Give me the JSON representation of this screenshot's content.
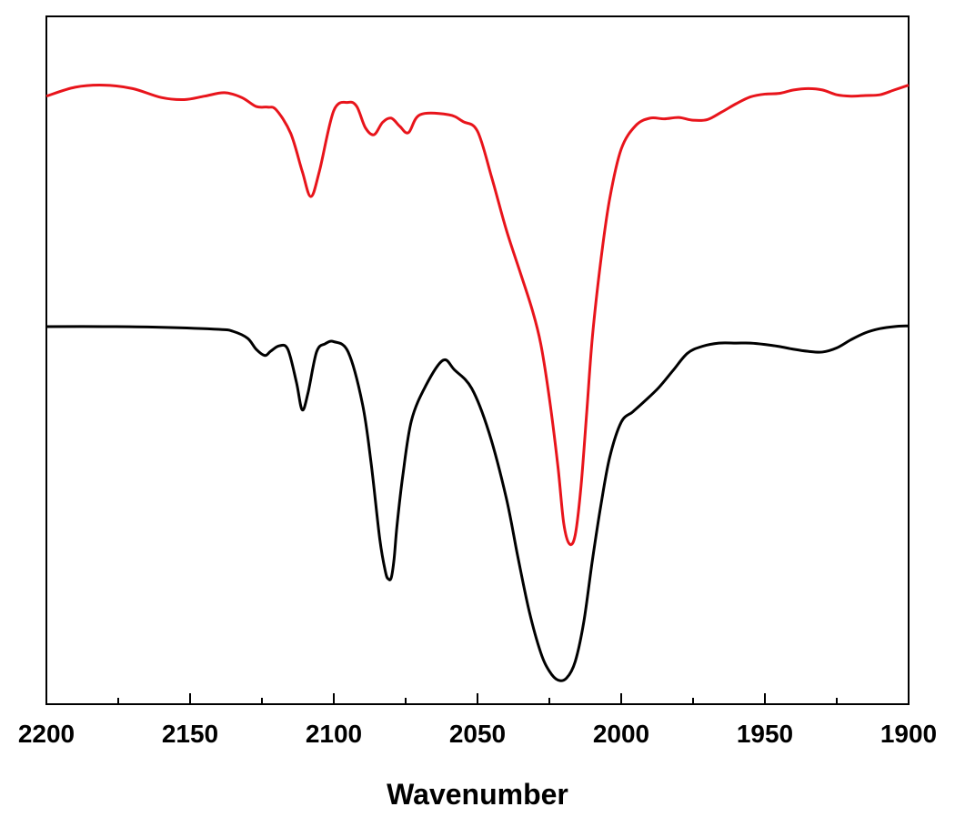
{
  "chart_data": {
    "type": "line",
    "title": "",
    "xlabel": "Wavenumber",
    "ylabel": "",
    "xlim": [
      2200,
      1900
    ],
    "x_reversed": true,
    "ylim": [
      0,
      1
    ],
    "grid": false,
    "y_ticks_labeled": false,
    "x_ticks": [
      2200,
      2150,
      2100,
      2050,
      2000,
      1950,
      1900
    ],
    "x_tick_labels": [
      "2200",
      "2150",
      "2100",
      "2050",
      "2000",
      "1950",
      "1900"
    ],
    "series": [
      {
        "color": "#e8141b",
        "x": [
          2200,
          2190,
          2180,
          2170,
          2160,
          2152,
          2145,
          2138,
          2132,
          2127,
          2123,
          2120,
          2115,
          2111,
          2108,
          2105,
          2100,
          2095,
          2092,
          2089,
          2086,
          2083,
          2080,
          2077,
          2074,
          2070,
          2060,
          2055,
          2050,
          2045,
          2040,
          2035,
          2031,
          2028,
          2025,
          2022,
          2020,
          2018,
          2016,
          2014,
          2012,
          2010,
          2007,
          2004,
          2000,
          1995,
          1990,
          1985,
          1980,
          1975,
          1970,
          1965,
          1960,
          1955,
          1950,
          1945,
          1940,
          1935,
          1930,
          1925,
          1920,
          1915,
          1910,
          1905,
          1900
        ],
        "y": [
          0.884,
          0.897,
          0.9,
          0.895,
          0.882,
          0.879,
          0.884,
          0.889,
          0.882,
          0.869,
          0.868,
          0.864,
          0.83,
          0.775,
          0.738,
          0.775,
          0.863,
          0.875,
          0.869,
          0.838,
          0.828,
          0.846,
          0.852,
          0.84,
          0.831,
          0.857,
          0.857,
          0.847,
          0.833,
          0.765,
          0.69,
          0.626,
          0.574,
          0.524,
          0.445,
          0.345,
          0.263,
          0.233,
          0.246,
          0.316,
          0.424,
          0.535,
          0.648,
          0.735,
          0.807,
          0.841,
          0.852,
          0.851,
          0.853,
          0.849,
          0.85,
          0.861,
          0.873,
          0.883,
          0.887,
          0.888,
          0.893,
          0.895,
          0.893,
          0.886,
          0.884,
          0.885,
          0.886,
          0.893,
          0.9
        ]
      },
      {
        "color": "#000000",
        "x": [
          2200,
          2180,
          2160,
          2140,
          2135,
          2130,
          2127,
          2124,
          2122,
          2119,
          2116,
          2113,
          2111,
          2109,
          2106,
          2103,
          2100,
          2095,
          2090,
          2087,
          2084,
          2082,
          2081,
          2080,
          2079,
          2078,
          2076,
          2073,
          2068,
          2062,
          2058,
          2052,
          2046,
          2040,
          2036,
          2032,
          2028,
          2025,
          2022,
          2019,
          2016,
          2013,
          2010,
          2007,
          2004,
          2000,
          1996,
          1992,
          1987,
          1982,
          1977,
          1972,
          1966,
          1960,
          1955,
          1950,
          1945,
          1940,
          1935,
          1930,
          1925,
          1920,
          1915,
          1910,
          1905,
          1900
        ],
        "y": [
          0.549,
          0.549,
          0.548,
          0.545,
          0.542,
          0.532,
          0.516,
          0.507,
          0.513,
          0.521,
          0.516,
          0.468,
          0.428,
          0.452,
          0.512,
          0.524,
          0.527,
          0.512,
          0.436,
          0.35,
          0.24,
          0.192,
          0.182,
          0.184,
          0.212,
          0.26,
          0.332,
          0.412,
          0.463,
          0.5,
          0.486,
          0.459,
          0.395,
          0.3,
          0.215,
          0.135,
          0.075,
          0.048,
          0.035,
          0.038,
          0.062,
          0.12,
          0.21,
          0.291,
          0.359,
          0.41,
          0.425,
          0.44,
          0.46,
          0.485,
          0.51,
          0.52,
          0.525,
          0.525,
          0.525,
          0.523,
          0.52,
          0.516,
          0.513,
          0.512,
          0.518,
          0.53,
          0.54,
          0.546,
          0.549,
          0.55
        ]
      }
    ]
  }
}
